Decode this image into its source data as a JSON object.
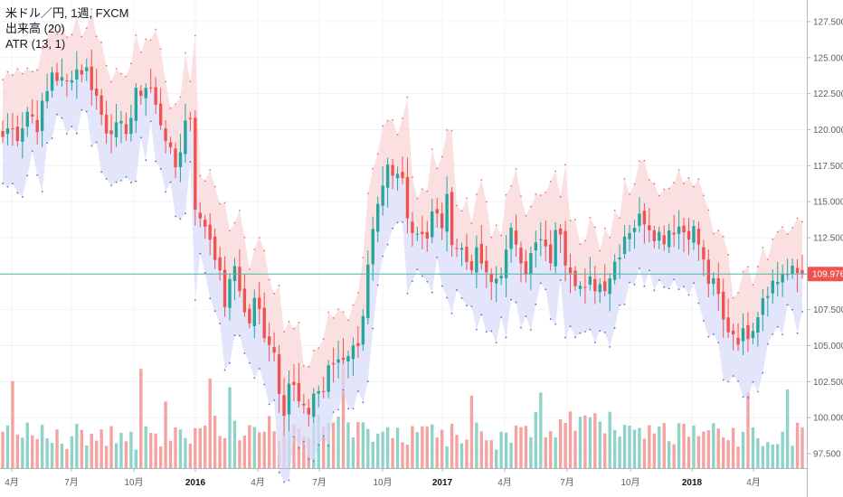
{
  "legend": {
    "symbol": "米ドル／円, 1週, FXCM",
    "volume": "出来高 (20)",
    "atr": "ATR (13, 1)"
  },
  "colors": {
    "up": "#26a69a",
    "down": "#ef5350",
    "up_volume": "#8fd3c8",
    "down_volume": "#f4a3a1",
    "upper_band": "#f9d6d8",
    "lower_band": "#d9dcfa",
    "last_price_line": "#4db6ac",
    "price_tag": "#ef5350"
  },
  "price_axis": {
    "ticks": [
      "127.500",
      "125.000",
      "122.500",
      "120.000",
      "117.500",
      "115.000",
      "112.500",
      "110.000",
      "107.500",
      "105.000",
      "102.500",
      "100.000",
      "97.500"
    ],
    "last_price": "109.976"
  },
  "time_axis": {
    "ticks": [
      {
        "label": "4月",
        "bold": false
      },
      {
        "label": "7月",
        "bold": false
      },
      {
        "label": "10月",
        "bold": false
      },
      {
        "label": "2016",
        "bold": true
      },
      {
        "label": "4月",
        "bold": false
      },
      {
        "label": "7月",
        "bold": false
      },
      {
        "label": "10月",
        "bold": false
      },
      {
        "label": "2017",
        "bold": true
      },
      {
        "label": "4月",
        "bold": false
      },
      {
        "label": "7月",
        "bold": false
      },
      {
        "label": "10月",
        "bold": false
      },
      {
        "label": "2018",
        "bold": true
      },
      {
        "label": "4月",
        "bold": false
      }
    ]
  },
  "chart_data": {
    "type": "candlestick",
    "symbol": "USDJPY",
    "timeframe": "1週",
    "x_range": [
      "2015-03",
      "2018-06"
    ],
    "ylim": [
      96.5,
      129
    ],
    "grid": true,
    "close_path": [
      [
        0,
        119.5
      ],
      [
        2,
        120.3
      ],
      [
        4,
        119.6
      ],
      [
        6,
        120.5
      ],
      [
        8,
        121.6
      ],
      [
        10,
        120.2
      ],
      [
        13,
        122.0
      ],
      [
        15,
        124.1
      ],
      [
        17,
        123.6
      ],
      [
        19,
        122.8
      ],
      [
        21,
        124.1
      ],
      [
        23,
        124.2
      ],
      [
        25,
        124.3
      ],
      [
        27,
        123.3
      ],
      [
        29,
        121.9
      ],
      [
        31,
        120.2
      ],
      [
        33,
        120.4
      ],
      [
        35,
        119.6
      ],
      [
        37,
        120.1
      ],
      [
        39,
        120.9
      ],
      [
        41,
        122.6
      ],
      [
        43,
        123.1
      ],
      [
        45,
        122.8
      ],
      [
        47,
        121.0
      ],
      [
        49,
        120.3
      ],
      [
        51,
        118.0
      ],
      [
        53,
        117.3
      ],
      [
        55,
        120.4
      ],
      [
        57,
        121.0
      ],
      [
        59,
        113.0
      ],
      [
        61,
        113.8
      ],
      [
        63,
        112.6
      ],
      [
        65,
        111.3
      ],
      [
        67,
        107.8
      ],
      [
        69,
        109.0
      ],
      [
        71,
        111.1
      ],
      [
        73,
        107.3
      ],
      [
        75,
        106.7
      ],
      [
        77,
        108.3
      ],
      [
        79,
        106.3
      ],
      [
        81,
        105.5
      ],
      [
        83,
        104.3
      ],
      [
        85,
        100.3
      ],
      [
        87,
        102.5
      ],
      [
        89,
        101.8
      ],
      [
        91,
        100.0
      ],
      [
        93,
        100.5
      ],
      [
        95,
        102.2
      ],
      [
        97,
        101.5
      ],
      [
        99,
        103.1
      ],
      [
        101,
        104.0
      ],
      [
        103,
        104.3
      ],
      [
        105,
        104.7
      ],
      [
        107,
        104.6
      ],
      [
        109,
        106.5
      ],
      [
        111,
        110.2
      ],
      [
        113,
        113.3
      ],
      [
        115,
        114.9
      ],
      [
        117,
        117.0
      ],
      [
        119,
        116.2
      ],
      [
        121,
        117.2
      ],
      [
        123,
        114.6
      ],
      [
        125,
        112.6
      ],
      [
        127,
        113.4
      ],
      [
        129,
        112.6
      ],
      [
        131,
        114.5
      ],
      [
        133,
        113.1
      ],
      [
        135,
        114.8
      ],
      [
        137,
        112.1
      ],
      [
        139,
        111.9
      ],
      [
        141,
        110.9
      ],
      [
        143,
        110.9
      ],
      [
        145,
        111.2
      ],
      [
        147,
        109.5
      ],
      [
        149,
        109.2
      ],
      [
        151,
        110.2
      ],
      [
        153,
        111.2
      ],
      [
        155,
        113.0
      ],
      [
        157,
        111.8
      ],
      [
        159,
        110.5
      ],
      [
        161,
        111.3
      ],
      [
        163,
        112.4
      ],
      [
        165,
        111.3
      ],
      [
        167,
        111.1
      ],
      [
        169,
        113.9
      ],
      [
        171,
        111.3
      ],
      [
        173,
        110.5
      ],
      [
        175,
        109.3
      ],
      [
        177,
        108.5
      ],
      [
        179,
        109.5
      ],
      [
        181,
        109.2
      ],
      [
        183,
        109.5
      ],
      [
        185,
        110.2
      ],
      [
        187,
        111.5
      ],
      [
        189,
        112.8
      ],
      [
        191,
        113.4
      ],
      [
        193,
        113.6
      ],
      [
        195,
        114.0
      ],
      [
        197,
        113.4
      ],
      [
        199,
        112.7
      ],
      [
        201,
        112.7
      ],
      [
        203,
        113.3
      ],
      [
        205,
        113.4
      ],
      [
        207,
        113.0
      ],
      [
        209,
        113.2
      ],
      [
        211,
        112.6
      ],
      [
        213,
        110.6
      ],
      [
        215,
        109.2
      ],
      [
        217,
        108.8
      ],
      [
        219,
        106.6
      ],
      [
        221,
        106.2
      ],
      [
        223,
        105.8
      ],
      [
        225,
        105.6
      ],
      [
        227,
        106.3
      ],
      [
        229,
        107.1
      ],
      [
        231,
        108.6
      ],
      [
        233,
        109.4
      ],
      [
        235,
        109.3
      ],
      [
        237,
        110.2
      ],
      [
        239,
        109.8
      ],
      [
        241,
        110.0
      ],
      [
        243,
        109.976
      ]
    ],
    "volume": {
      "ylim": [
        0,
        200
      ],
      "bars_count": 163
    }
  }
}
